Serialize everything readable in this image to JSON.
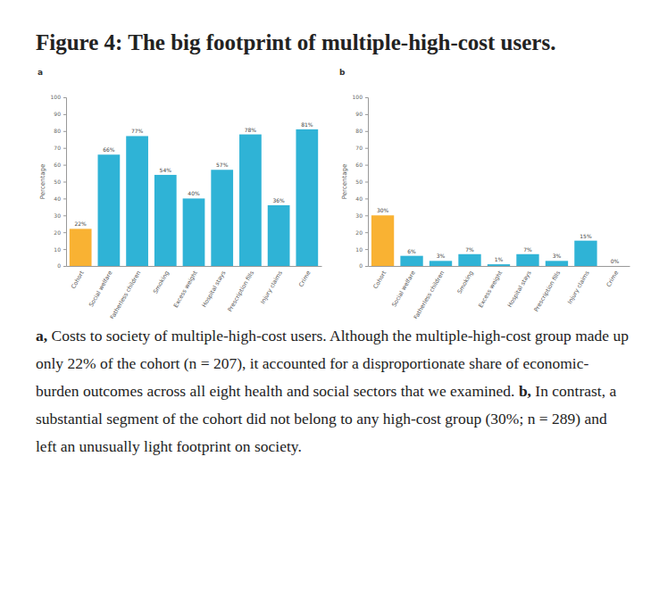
{
  "title": "Figure 4: The big footprint of multiple-high-cost users.",
  "caption": [
    {
      "label": "a,",
      "text": "Costs to society of multiple-high-cost users. Although the multiple-high-cost group made up only 22% of the cohort (n = 207), it accounted for a disproportionate share of economic-burden outcomes across all eight health and social sectors that we examined."
    },
    {
      "label": "b,",
      "text": "In contrast, a substantial segment of the cohort did not belong to any high-cost group (30%; n = 289) and left an unusually light footprint on society."
    }
  ],
  "chart_data": [
    {
      "type": "bar",
      "title": "a",
      "ylabel": "Percentage",
      "categories": [
        "Cohort",
        "Social welfare",
        "Fatherless children",
        "Smoking",
        "Excess weight",
        "Hospital stays",
        "Prescription fills",
        "Injury claims",
        "Crime"
      ],
      "values": [
        22,
        66,
        77,
        54,
        40,
        57,
        78,
        36,
        81
      ],
      "value_labels": [
        "22%",
        "66%",
        "77%",
        "54%",
        "40%",
        "57%",
        "78%",
        "36%",
        "81%"
      ],
      "colors": [
        "#f9b233",
        "#2fb3d6",
        "#2fb3d6",
        "#2fb3d6",
        "#2fb3d6",
        "#2fb3d6",
        "#2fb3d6",
        "#2fb3d6",
        "#2fb3d6"
      ],
      "ylim": [
        0,
        100
      ],
      "yticks": [
        0,
        10,
        20,
        30,
        40,
        50,
        60,
        70,
        80,
        90,
        100
      ],
      "grid": false,
      "data_labels": true
    },
    {
      "type": "bar",
      "title": "b",
      "ylabel": "Percentage",
      "categories": [
        "Cohort",
        "Social welfare",
        "Fatherless children",
        "Smoking",
        "Excess weight",
        "Hospital stays",
        "Prescription fills",
        "Injury claims",
        "Crime"
      ],
      "values": [
        30,
        6,
        3,
        7,
        1,
        7,
        3,
        15,
        0
      ],
      "value_labels": [
        "30%",
        "6%",
        "3%",
        "7%",
        "1%",
        "7%",
        "3%",
        "15%",
        "0%"
      ],
      "colors": [
        "#f9b233",
        "#2fb3d6",
        "#2fb3d6",
        "#2fb3d6",
        "#2fb3d6",
        "#2fb3d6",
        "#2fb3d6",
        "#2fb3d6",
        "#2fb3d6"
      ],
      "ylim": [
        0,
        100
      ],
      "yticks": [
        0,
        10,
        20,
        30,
        40,
        50,
        60,
        70,
        80,
        90,
        100
      ],
      "grid": false,
      "data_labels": true
    }
  ]
}
